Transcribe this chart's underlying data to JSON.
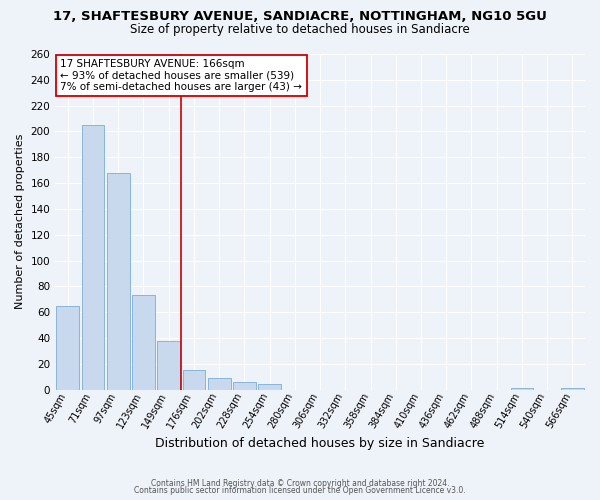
{
  "title": "17, SHAFTESBURY AVENUE, SANDIACRE, NOTTINGHAM, NG10 5GU",
  "subtitle": "Size of property relative to detached houses in Sandiacre",
  "xlabel": "Distribution of detached houses by size in Sandiacre",
  "ylabel": "Number of detached properties",
  "bar_labels": [
    "45sqm",
    "71sqm",
    "97sqm",
    "123sqm",
    "149sqm",
    "176sqm",
    "202sqm",
    "228sqm",
    "254sqm",
    "280sqm",
    "306sqm",
    "332sqm",
    "358sqm",
    "384sqm",
    "410sqm",
    "436sqm",
    "462sqm",
    "488sqm",
    "514sqm",
    "540sqm",
    "566sqm"
  ],
  "bar_values": [
    65,
    205,
    168,
    73,
    38,
    15,
    9,
    6,
    4,
    0,
    0,
    0,
    0,
    0,
    0,
    0,
    0,
    0,
    1,
    0,
    1
  ],
  "bar_color": "#c8d9ed",
  "bar_edge_color": "#7aaed6",
  "vline_color": "#cc0000",
  "vline_x": 4.5,
  "ylim": [
    0,
    260
  ],
  "yticks": [
    0,
    20,
    40,
    60,
    80,
    100,
    120,
    140,
    160,
    180,
    200,
    220,
    240,
    260
  ],
  "annotation_title": "17 SHAFTESBURY AVENUE: 166sqm",
  "annotation_line1": "← 93% of detached houses are smaller (539)",
  "annotation_line2": "7% of semi-detached houses are larger (43) →",
  "annotation_box_color": "#ffffff",
  "annotation_box_edge": "#cc0000",
  "footer1": "Contains HM Land Registry data © Crown copyright and database right 2024.",
  "footer2": "Contains public sector information licensed under the Open Government Licence v3.0.",
  "background_color": "#eef2f9",
  "plot_background_color": "#eef2f9",
  "grid_color": "#ffffff",
  "title_fontsize": 9.5,
  "subtitle_fontsize": 8.5,
  "xlabel_fontsize": 9,
  "ylabel_fontsize": 8,
  "tick_fontsize": 7,
  "ytick_fontsize": 7.5,
  "footer_fontsize": 5.5,
  "ann_fontsize": 7.5
}
